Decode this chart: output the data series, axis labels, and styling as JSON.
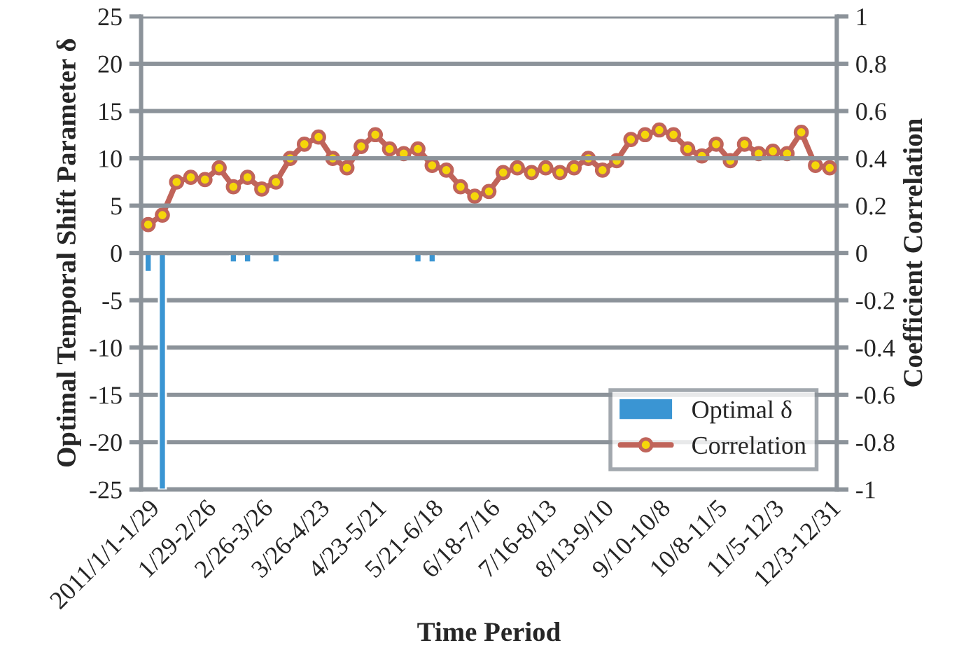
{
  "chart_data": {
    "type": "bar",
    "xlabel": "Time Period",
    "ylabel": "Optimal Temporal Shift Parameter δ",
    "y2label": "Coefficient Correlation",
    "categories": [
      "2011/1/1-1/29",
      null,
      null,
      null,
      "1/29-2/26",
      null,
      null,
      null,
      "2/26-3/26",
      null,
      null,
      null,
      "3/26-4/23",
      null,
      null,
      null,
      "4/23-5/21",
      null,
      null,
      null,
      "5/21-6/18",
      null,
      null,
      null,
      "6/18-7/16",
      null,
      null,
      null,
      "7/16-8/13",
      null,
      null,
      null,
      "8/13-9/10",
      null,
      null,
      null,
      "9/10-10/8",
      null,
      null,
      null,
      "10/8-11/5",
      null,
      null,
      null,
      "11/5-12/3",
      null,
      null,
      null,
      "12/3-12/31"
    ],
    "series": [
      {
        "name": "Optimal δ",
        "color": "#3a95d3",
        "values": [
          -2,
          -25,
          null,
          null,
          null,
          null,
          -1,
          -1,
          null,
          -1,
          null,
          null,
          null,
          null,
          null,
          null,
          null,
          null,
          null,
          -1,
          -1,
          null,
          null,
          null,
          null,
          null,
          null,
          null,
          null,
          null,
          null,
          null,
          null,
          null,
          null,
          null,
          null,
          null,
          null,
          null,
          null,
          null,
          null,
          null,
          null,
          null,
          null,
          null,
          null
        ]
      },
      {
        "name": "Correlation",
        "type": "line",
        "axis": "y2",
        "color": "#c0645a",
        "marker": "circle",
        "values": [
          0.12,
          0.16,
          0.3,
          0.32,
          0.31,
          0.36,
          0.28,
          0.32,
          0.27,
          0.3,
          0.4,
          0.46,
          0.49,
          0.4,
          0.36,
          0.45,
          0.5,
          0.44,
          0.42,
          0.44,
          0.37,
          0.35,
          0.28,
          0.24,
          0.26,
          0.34,
          0.36,
          0.34,
          0.36,
          0.34,
          0.36,
          0.4,
          0.35,
          0.39,
          0.48,
          0.5,
          0.52,
          0.5,
          0.44,
          0.41,
          0.46,
          0.39,
          0.46,
          0.42,
          0.43,
          0.42,
          0.51,
          0.37,
          0.36
        ]
      }
    ],
    "ylim": [
      -25,
      25
    ],
    "yticks": [
      -25,
      -20,
      -15,
      -10,
      -5,
      0,
      5,
      10,
      15,
      20,
      25
    ],
    "y2lim": [
      -1,
      1
    ],
    "y2ticks": [
      -1,
      -0.8,
      -0.6,
      -0.4,
      -0.2,
      0,
      0.2,
      0.4,
      0.6,
      0.8,
      1
    ],
    "grid": "y",
    "legend": "bottom right"
  }
}
